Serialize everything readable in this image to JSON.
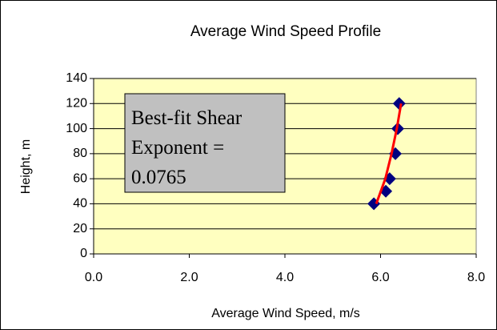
{
  "chart_data": {
    "type": "scatter",
    "title": "Average Wind Speed Profile",
    "x_label": "Average Wind Speed, m/s",
    "y_label": "Height, m",
    "annotation": [
      "Best-fit Shear",
      "Exponent =",
      "0.0765"
    ],
    "series": [
      {
        "color": "#000080",
        "marker": "diamond",
        "x": [
          5.86,
          6.11,
          6.19,
          6.31,
          6.36,
          6.39
        ],
        "values": [
          40,
          50,
          60,
          80,
          100,
          120
        ]
      },
      {
        "color": "#ff0000",
        "marker": "none",
        "x": [
          5.91,
          6.1,
          6.23,
          6.34,
          6.43
        ],
        "values": [
          40,
          60,
          80,
          100,
          120
        ]
      }
    ],
    "xlim": [
      0,
      8
    ],
    "xticks": [
      {
        "value": 0,
        "label": "0.0"
      },
      {
        "value": 2,
        "label": "2.0"
      },
      {
        "value": 4,
        "label": "4.0"
      },
      {
        "value": 6,
        "label": "6.0"
      },
      {
        "value": 8,
        "label": "8.0"
      }
    ],
    "ylim": [
      0,
      140
    ],
    "yticks": [
      0,
      20,
      40,
      60,
      80,
      100,
      120,
      140
    ],
    "grid": true
  }
}
